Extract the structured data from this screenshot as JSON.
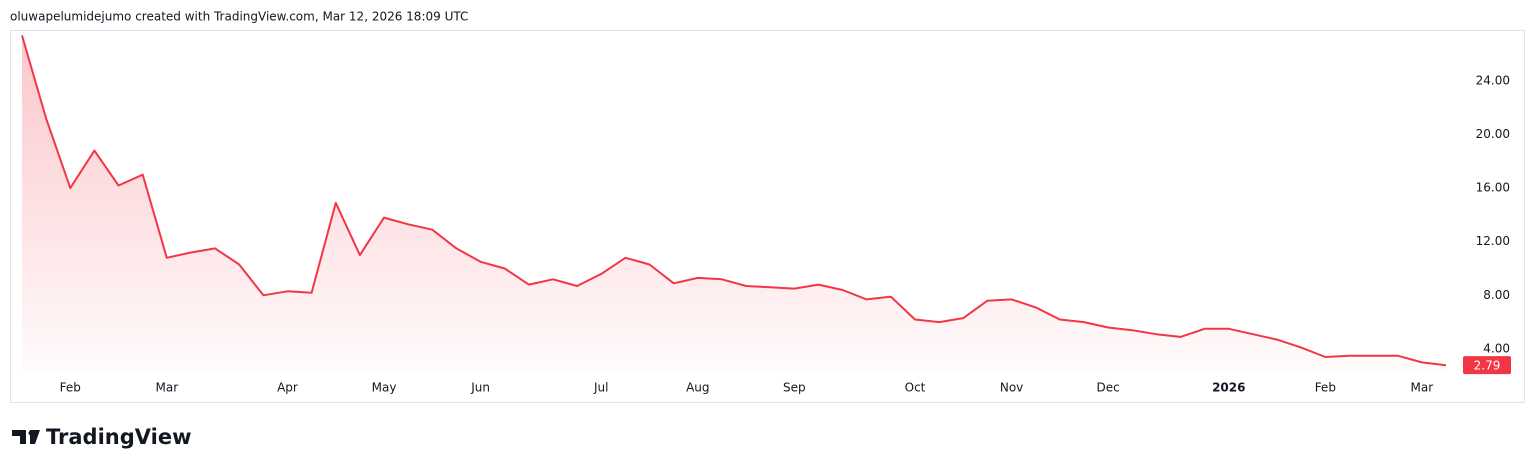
{
  "chart_data": {
    "type": "line",
    "attribution": "oluwapelumidejumo created with TradingView.com, Mar 12, 2026 18:09 UTC",
    "logo_text": "TradingView",
    "categories": [
      null,
      null,
      "Feb",
      null,
      null,
      null,
      "Mar",
      null,
      null,
      null,
      null,
      "Apr",
      null,
      null,
      null,
      "May",
      null,
      null,
      null,
      "Jun",
      null,
      null,
      null,
      null,
      "Jul",
      null,
      null,
      null,
      "Aug",
      null,
      null,
      null,
      "Sep",
      null,
      null,
      null,
      null,
      "Oct",
      null,
      null,
      null,
      "Nov",
      null,
      null,
      null,
      "Dec",
      null,
      null,
      null,
      null,
      "2026",
      null,
      null,
      null,
      "Feb",
      null,
      null,
      null,
      "Mar",
      null
    ],
    "series": [
      {
        "color": "#f23645",
        "values": [
          27.4,
          21.2,
          16.0,
          18.8,
          16.2,
          17.0,
          10.8,
          11.2,
          11.5,
          10.3,
          8.0,
          8.3,
          8.2,
          14.9,
          11.0,
          13.8,
          13.3,
          12.9,
          11.5,
          10.5,
          10.0,
          8.8,
          9.2,
          8.7,
          9.6,
          10.8,
          10.3,
          8.9,
          9.3,
          9.2,
          8.7,
          8.6,
          8.5,
          8.8,
          8.4,
          7.7,
          7.9,
          6.2,
          6.0,
          6.3,
          7.6,
          7.7,
          7.1,
          6.2,
          6.0,
          5.6,
          5.4,
          5.1,
          4.9,
          5.5,
          5.5,
          5.1,
          4.7,
          4.1,
          3.4,
          3.5,
          3.5,
          3.5,
          3.0,
          2.79
        ]
      }
    ],
    "ylim": [
      2.28,
      27.8
    ],
    "yticks": [
      {
        "value": 4,
        "label": "4.00"
      },
      {
        "value": 8,
        "label": "8.00"
      },
      {
        "value": 12,
        "label": "12.00"
      },
      {
        "value": 16,
        "label": "16.00"
      },
      {
        "value": 20,
        "label": "20.00"
      },
      {
        "value": 24,
        "label": "24.00"
      }
    ],
    "grid": false
  }
}
